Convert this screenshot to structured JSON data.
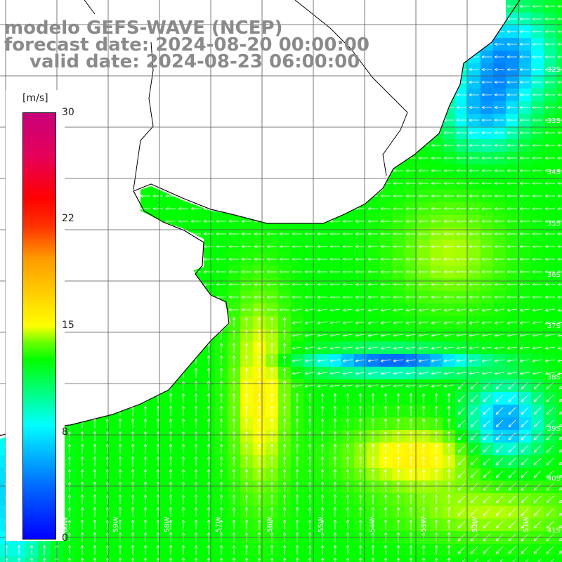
{
  "titles": {
    "line1": "modelo GEFS-WAVE (NCEP)",
    "line2": "forecast date: 2024-08-20 00:00:00",
    "line3": "valid date: 2024-08-23 06:00:00"
  },
  "colorbar": {
    "unit": "[m/s]",
    "ticks": [
      "30",
      "22",
      "15",
      "8",
      "0"
    ]
  },
  "lat_labels": [
    "32S",
    "33S",
    "34S",
    "35S",
    "36S",
    "37S",
    "38S",
    "39S",
    "40S",
    "41S"
  ],
  "lon_labels": [
    "60W",
    "59W",
    "58W",
    "57W",
    "56W",
    "55W",
    "54W",
    "53W",
    "52W",
    "51W"
  ],
  "colors": {
    "land": "#ffffff",
    "grid": "#555555",
    "coast": "#000000",
    "arrow": "#ffffff"
  }
}
